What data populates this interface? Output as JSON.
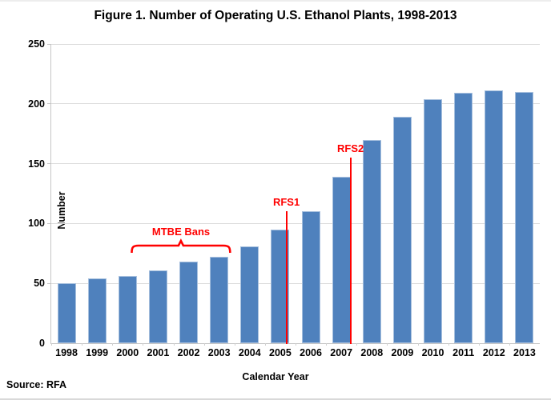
{
  "figure": {
    "source": "Source: RFA"
  },
  "chart_data": {
    "type": "bar",
    "title": "Figure 1. Number of Operating U.S. Ethanol Plants, 1998-2013",
    "xlabel": "Calendar Year",
    "ylabel": "Number",
    "ylim": [
      0,
      250
    ],
    "yticks": [
      0,
      50,
      100,
      150,
      200,
      250
    ],
    "grid": true,
    "legend": "none",
    "bar_color": "#4F81BD",
    "bar_border_color": "#A7C0DE",
    "annotation_color": "#FF0000",
    "categories": [
      "1998",
      "1999",
      "2000",
      "2001",
      "2002",
      "2003",
      "2004",
      "2005",
      "2006",
      "2007",
      "2008",
      "2009",
      "2010",
      "2011",
      "2012",
      "2013"
    ],
    "values": [
      50,
      54,
      56,
      61,
      68,
      72,
      81,
      95,
      110,
      139,
      170,
      189,
      204,
      209,
      211,
      210
    ],
    "annotations": [
      {
        "type": "brace",
        "label": "MTBE Bans",
        "span_start_year": 2000.1,
        "span_end_year": 2003.4,
        "y_value": 82
      },
      {
        "type": "vline",
        "label": "RFS1",
        "x_year": 2005.2,
        "top_value": 110
      },
      {
        "type": "vline",
        "label": "RFS2",
        "x_year": 2007.3,
        "top_value": 155
      }
    ]
  }
}
